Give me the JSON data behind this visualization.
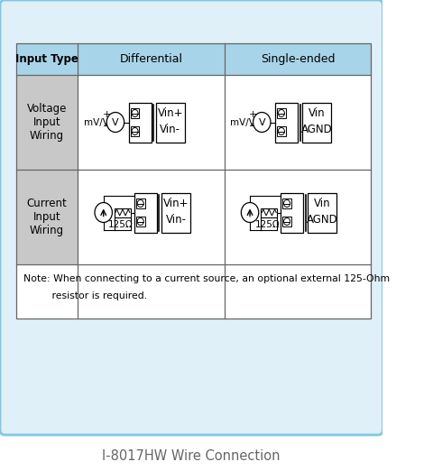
{
  "title": "I-8017HW Wire Connection",
  "outer_border_color": "#7ec8e3",
  "outer_border_bg": "#dff0f8",
  "header_bg": "#a8d4ea",
  "row_label_bg": "#c8c8c8",
  "cell_bg": "#ffffff",
  "table_border_color": "#666666",
  "col0_label": "Input Type",
  "col1_label": "Differential",
  "col2_label": "Single-ended",
  "row1_label": "Voltage\nInput\nWiring",
  "row2_label": "Current\nInput\nWiring",
  "note_line1": "Note: When connecting to a current source, an optional external 125-Ohm",
  "note_line2": "         resistor is required.",
  "title_color": "#666666",
  "title_fontsize": 10.5
}
